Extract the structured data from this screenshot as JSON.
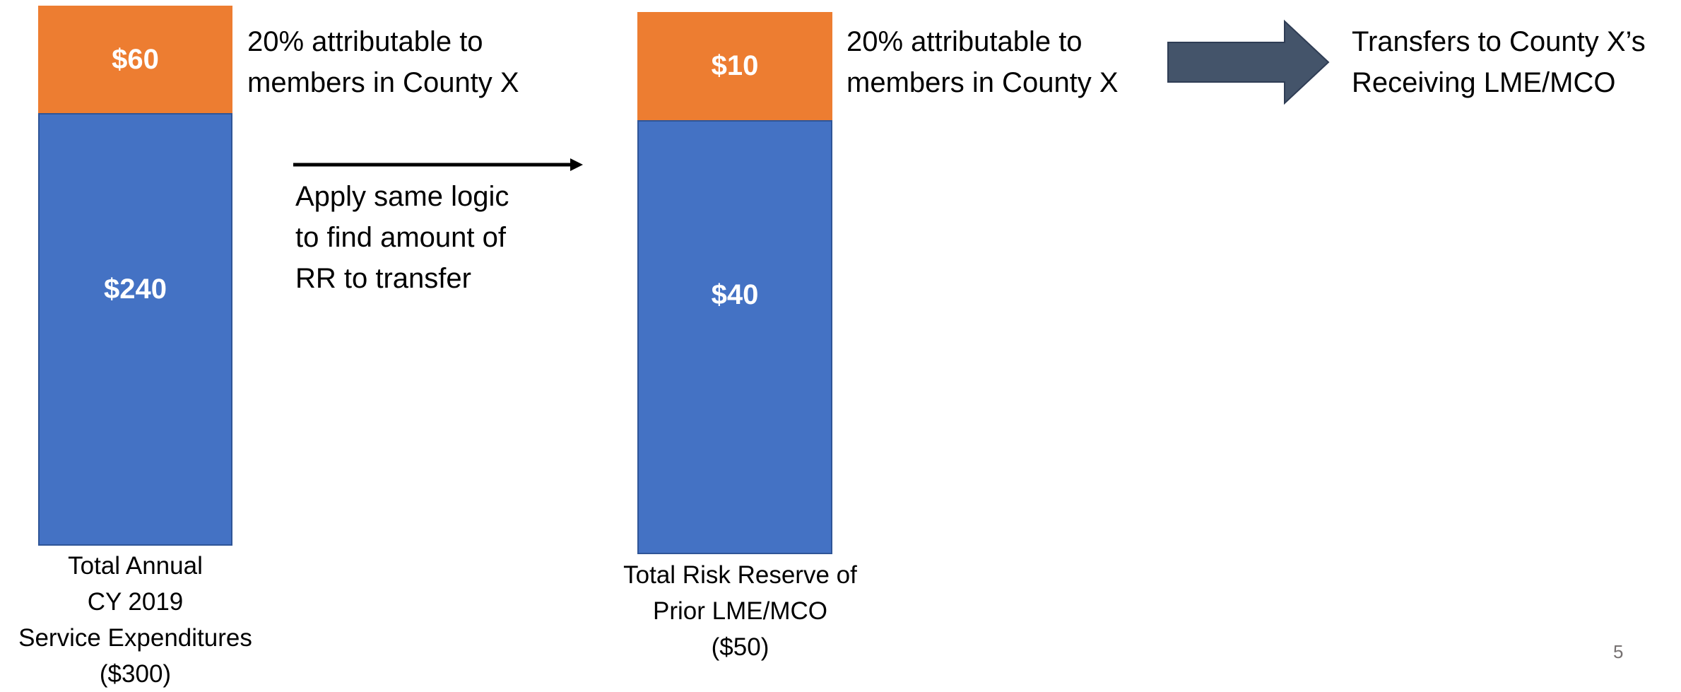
{
  "left_bar": {
    "top_value": "$60",
    "bottom_value": "$240",
    "annotation": "20% attributable to\nmembers in County X",
    "caption": "Total Annual\nCY 2019\nService Expenditures\n($300)"
  },
  "right_bar": {
    "top_value": "$10",
    "bottom_value": "$40",
    "annotation": "20% attributable to\nmembers in County X",
    "caption": "Total Risk Reserve of\nPrior LME/MCO\n($50)"
  },
  "connector": {
    "label": "Apply same logic\nto find amount of\nRR to transfer"
  },
  "transfer": {
    "label": "Transfers to County X’s\nReceiving LME/MCO"
  },
  "page_number": "5",
  "colors": {
    "orange": "#ED7D31",
    "blue": "#4472C4",
    "blue_border": "#2F5597",
    "block_arrow": "#44546A",
    "page_number": "#767171"
  }
}
